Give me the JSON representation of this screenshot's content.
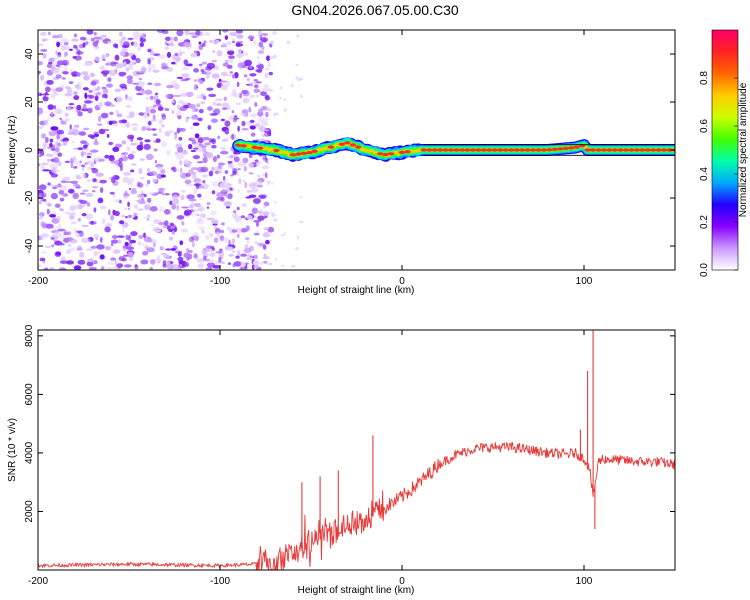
{
  "title": "GN04.2026.067.05.00.C30",
  "chart_data": [
    {
      "type": "heatmap",
      "xlabel": "Height of straight line (km)",
      "ylabel": "Frequency (Hz)",
      "xlim": [
        -200,
        150
      ],
      "ylim": [
        -50,
        50
      ],
      "xticks": [
        -200,
        -100,
        0,
        100
      ],
      "yticks": [
        -40,
        -20,
        0,
        20,
        40
      ],
      "colorbar": {
        "label": "Normalized spectral amplitude",
        "range": [
          0,
          1
        ],
        "ticks": [
          "0.0",
          "0.2",
          "0.4",
          "0.6",
          "0.8"
        ],
        "colors": [
          "#ffffff",
          "#cc99ff",
          "#8800ff",
          "#2200ff",
          "#00aaff",
          "#00ffaa",
          "#44ff00",
          "#ccff00",
          "#ffcc00",
          "#ff6600",
          "#ff2222",
          "#ff0066"
        ]
      },
      "noise_region_x": [
        -200,
        -80
      ],
      "signal_ridge": {
        "x": [
          -90,
          -80,
          -70,
          -60,
          -50,
          -40,
          -30,
          -20,
          -10,
          0,
          10,
          20,
          40,
          60,
          80,
          95,
          100,
          102,
          110,
          130,
          150
        ],
        "y": [
          2,
          1,
          0,
          -2,
          -1,
          1,
          3,
          0,
          -2,
          -1,
          0,
          0,
          0,
          0,
          0,
          1,
          2,
          0,
          0,
          0,
          0
        ],
        "peak_amplitude": 0.95
      }
    },
    {
      "type": "line",
      "xlabel": "Height of straight line (km)",
      "ylabel": "SNR (10 * v/v)",
      "xlim": [
        -200,
        150
      ],
      "ylim": [
        0,
        8200
      ],
      "xticks": [
        -200,
        -100,
        0,
        100
      ],
      "yticks": [
        2000,
        4000,
        6000,
        8000
      ],
      "series": [
        {
          "name": "SNR",
          "color": "#e83a3a",
          "x": [
            -200,
            -150,
            -100,
            -80,
            -70,
            -60,
            -50,
            -40,
            -30,
            -20,
            -10,
            0,
            10,
            20,
            30,
            40,
            50,
            60,
            70,
            80,
            90,
            95,
            100,
            103,
            105,
            108,
            110,
            120,
            130,
            140,
            150
          ],
          "y": [
            150,
            200,
            150,
            200,
            300,
            600,
            900,
            1200,
            1500,
            1800,
            2100,
            2500,
            3000,
            3600,
            3950,
            4150,
            4200,
            4200,
            4100,
            4000,
            3950,
            4000,
            3800,
            3500,
            2500,
            3700,
            3800,
            3750,
            3700,
            3700,
            3600
          ]
        }
      ],
      "spikes": [
        {
          "x": -55,
          "y": 3000
        },
        {
          "x": -45,
          "y": 3200
        },
        {
          "x": -35,
          "y": 3400
        },
        {
          "x": -16,
          "y": 4600
        },
        {
          "x": 98,
          "y": 4800
        },
        {
          "x": 102,
          "y": 6800
        },
        {
          "x": 105,
          "y": 8200
        },
        {
          "x": 106,
          "y": 1400
        }
      ]
    }
  ]
}
